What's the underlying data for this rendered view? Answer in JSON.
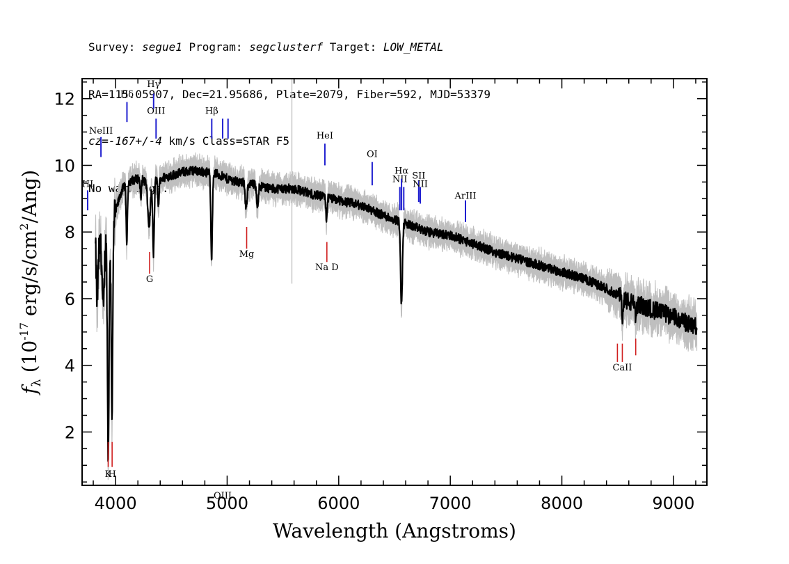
{
  "header": {
    "line1": {
      "survey_label": "Survey: ",
      "survey": "segue1",
      "program_label": " Program: ",
      "program": "segclusterf",
      "target_label": " Target: ",
      "target": "LOW_METAL"
    },
    "line2": "RA=115.05907, Dec=21.95686, Plate=2079, Fiber=592, MJD=53379",
    "line3": {
      "cz_label": "cz=",
      "cz": "-167+/-4",
      "rest": " km/s Class=STAR F5"
    },
    "line4": "No warnings."
  },
  "chart_data": {
    "type": "line",
    "xlabel": "Wavelength (Angstroms)",
    "ylabel_parts": {
      "f": "f",
      "sub": "λ",
      "a": " (10",
      "exp": "-17",
      "b": " erg/s/cm",
      "exp2": "2",
      "c": "/Ang)"
    },
    "xlim": [
      3700,
      9300
    ],
    "ylim": [
      0.4,
      12.6
    ],
    "x_ticks": [
      4000,
      5000,
      6000,
      7000,
      8000,
      9000
    ],
    "y_ticks": [
      2,
      4,
      6,
      8,
      10,
      12
    ],
    "x_minor_step": 200,
    "y_minor_step": 0.5,
    "grey_marker_x": 5580,
    "continuum": [
      [
        3830,
        7.8
      ],
      [
        3850,
        7.6
      ],
      [
        3880,
        7.4
      ],
      [
        3900,
        7.6
      ],
      [
        3950,
        7.9
      ],
      [
        4000,
        8.6
      ],
      [
        4050,
        9.2
      ],
      [
        4100,
        9.5
      ],
      [
        4200,
        9.6
      ],
      [
        4300,
        9.5
      ],
      [
        4400,
        9.6
      ],
      [
        4500,
        9.7
      ],
      [
        4600,
        9.8
      ],
      [
        4700,
        9.85
      ],
      [
        4800,
        9.8
      ],
      [
        4900,
        9.75
      ],
      [
        5000,
        9.6
      ],
      [
        5100,
        9.5
      ],
      [
        5200,
        9.45
      ],
      [
        5400,
        9.3
      ],
      [
        5600,
        9.3
      ],
      [
        5800,
        9.1
      ],
      [
        6000,
        8.95
      ],
      [
        6200,
        8.8
      ],
      [
        6400,
        8.5
      ],
      [
        6600,
        8.25
      ],
      [
        6800,
        8.0
      ],
      [
        7000,
        7.9
      ],
      [
        7200,
        7.65
      ],
      [
        7400,
        7.4
      ],
      [
        7600,
        7.2
      ],
      [
        7800,
        7.0
      ],
      [
        8000,
        6.8
      ],
      [
        8200,
        6.6
      ],
      [
        8400,
        6.3
      ],
      [
        8600,
        5.9
      ],
      [
        8800,
        5.7
      ],
      [
        9000,
        5.45
      ],
      [
        9200,
        5.15
      ]
    ],
    "absorption": [
      [
        3835,
        1.8,
        8
      ],
      [
        3890,
        2.0,
        8
      ],
      [
        3934,
        6.5,
        7
      ],
      [
        3968,
        5.5,
        7
      ],
      [
        4101,
        1.8,
        6
      ],
      [
        4226,
        0.6,
        5
      ],
      [
        4300,
        1.3,
        12
      ],
      [
        4340,
        2.2,
        7
      ],
      [
        4384,
        0.8,
        6
      ],
      [
        4861,
        2.5,
        7
      ],
      [
        5170,
        0.8,
        8
      ],
      [
        5270,
        0.6,
        8
      ],
      [
        5890,
        0.7,
        5
      ],
      [
        6563,
        2.5,
        8
      ],
      [
        8542,
        0.8,
        4
      ],
      [
        8662,
        0.5,
        4
      ]
    ],
    "emission_lines": [
      {
        "label": "HI",
        "x": 3750,
        "seg": [
          8.65,
          9.25
        ],
        "lbl_y": 9.35
      },
      {
        "label": "NeIII",
        "x": 3869,
        "seg": [
          10.25,
          10.85
        ],
        "lbl_y": 10.95
      },
      {
        "label": "Hδ",
        "x": 4102,
        "seg": [
          11.3,
          11.9
        ],
        "lbl_y": 12.05
      },
      {
        "label": "Hγ",
        "x": 4341,
        "seg": [
          11.7,
          12.15
        ],
        "lbl_y": 12.35
      },
      {
        "label": "OIII",
        "x": 4363,
        "seg": [
          10.8,
          11.4
        ],
        "lbl_y": 11.55
      },
      {
        "label": "Hβ",
        "x": 4862,
        "seg": [
          10.8,
          11.4
        ],
        "lbl_y": 11.55
      },
      {
        "label": "OIII",
        "x": 4960,
        "seg": [
          10.8,
          11.4
        ],
        "lbl_y": 0
      },
      {
        "label": "",
        "x": 5008,
        "seg": [
          10.8,
          11.4
        ],
        "lbl_y": 11.55
      },
      {
        "label": "HeI",
        "x": 5876,
        "seg": [
          10.0,
          10.65
        ],
        "lbl_y": 10.8
      },
      {
        "label": "OI",
        "x": 6300,
        "seg": [
          9.4,
          10.1
        ],
        "lbl_y": 10.25
      },
      {
        "label": "NII",
        "x": 6548,
        "seg": [
          8.65,
          9.35
        ],
        "lbl_y": 9.5
      },
      {
        "label": "Hα",
        "x": 6563,
        "seg": [
          8.65,
          9.6
        ],
        "lbl_y": 9.75
      },
      {
        "label": "",
        "x": 6583,
        "seg": [
          8.65,
          9.35
        ],
        "lbl_y": 0
      },
      {
        "label": "SII",
        "x": 6717,
        "seg": [
          8.9,
          9.55
        ],
        "lbl_y": 9.6
      },
      {
        "label": "NII",
        "x": 6731,
        "seg": [
          8.85,
          9.35
        ],
        "lbl_y": 9.35
      },
      {
        "label": "ArIII",
        "x": 7136,
        "seg": [
          8.3,
          8.95
        ],
        "lbl_y": 9.0
      }
    ],
    "absorption_lines": [
      {
        "label": "K",
        "x": 3934,
        "seg": [
          0.95,
          1.7
        ],
        "lbl_y": 0.65
      },
      {
        "label": "H",
        "x": 3969,
        "seg": [
          0.95,
          1.7
        ],
        "lbl_y": 0.65
      },
      {
        "label": "G",
        "x": 4305,
        "seg": [
          6.75,
          7.4
        ],
        "lbl_y": 6.5
      },
      {
        "label": "Mg",
        "x": 5175,
        "seg": [
          7.5,
          8.15
        ],
        "lbl_y": 7.25
      },
      {
        "label": "Na D",
        "x": 5894,
        "seg": [
          7.1,
          7.7
        ],
        "lbl_y": 6.85
      },
      {
        "label": "",
        "x": 8498,
        "seg": [
          4.1,
          4.65
        ],
        "lbl_y": 0
      },
      {
        "label": "CaII",
        "x": 8542,
        "seg": [
          4.1,
          4.65
        ],
        "lbl_y": 3.85
      },
      {
        "label": "",
        "x": 8662,
        "seg": [
          4.3,
          4.8
        ],
        "lbl_y": 0
      }
    ],
    "colors": {
      "flux": "#000000",
      "error_band": "#bfbfbf",
      "emission": "#1f1fd0",
      "absorption": "#d01f1f",
      "marker": "#c8c8c8"
    }
  }
}
